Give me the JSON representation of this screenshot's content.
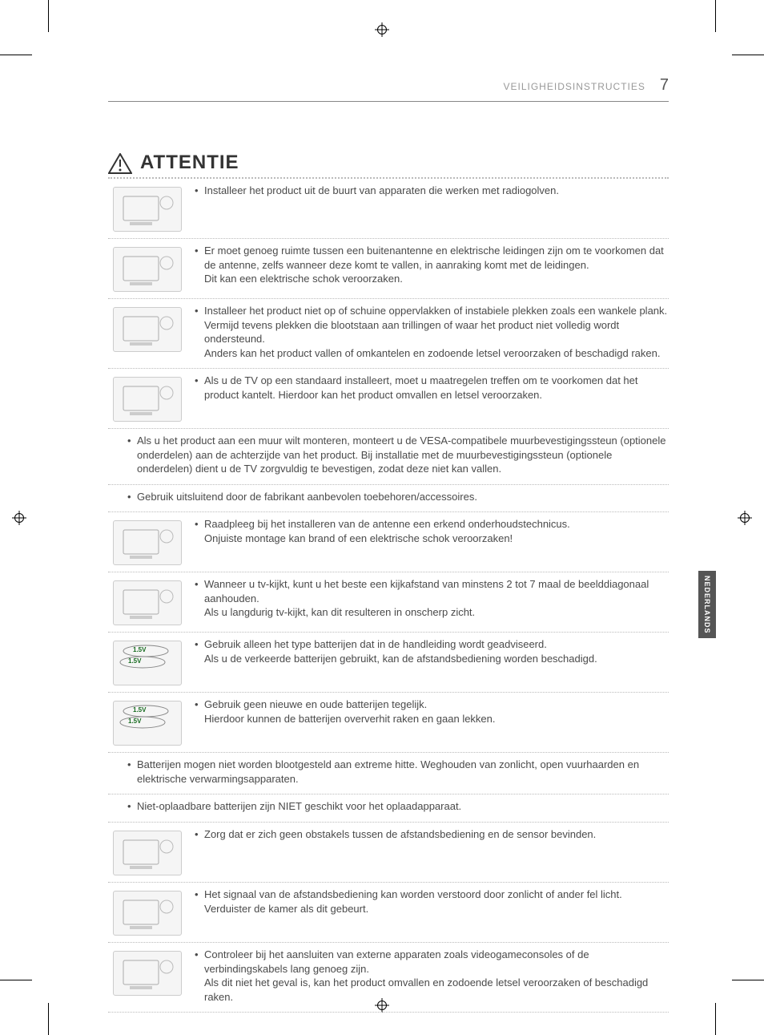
{
  "header": {
    "section": "VEILIGHEIDSINSTRUCTIES",
    "pagenum": "7"
  },
  "langtab": "NEDERLANDS",
  "attentie_title": "ATTENTIE",
  "rows": [
    {
      "kind": "img",
      "icon": "illustration-radio",
      "items": [
        {
          "main": "Installeer het product uit de buurt van apparaten die werken met radiogolven."
        }
      ]
    },
    {
      "kind": "img",
      "icon": "illustration-antenna",
      "items": [
        {
          "main": "Er moet genoeg ruimte tussen een buitenantenne en elektrische leidingen zijn om te voorkomen dat de antenne, zelfs wanneer deze komt te vallen, in aanraking komt met de leidingen.",
          "sub": "Dit kan een elektrische schok veroorzaken."
        }
      ]
    },
    {
      "kind": "img",
      "icon": "illustration-unstable",
      "items": [
        {
          "main": "Installeer het product niet op of schuine oppervlakken of instabiele plekken zoals een wankele plank. Vermijd tevens plekken die blootstaan aan trillingen of waar het product niet volledig wordt ondersteund.",
          "sub": "Anders kan het product vallen of omkantelen en zodoende letsel veroorzaken of beschadigd raken."
        }
      ]
    },
    {
      "kind": "img",
      "icon": "illustration-stand",
      "items": [
        {
          "main": "Als u de TV op een standaard installeert, moet u maatregelen treffen om te voorkomen dat het product kantelt. Hierdoor kan het product omvallen en letsel veroorzaken."
        }
      ]
    },
    {
      "kind": "full",
      "items": [
        {
          "main": "Als u het product aan een muur wilt monteren, monteert u de VESA-compatibele muurbevestigingssteun (optionele onderdelen) aan de achterzijde van het product. Bij installatie met de muurbevestigingssteun (optionele onderdelen) dient u de TV zorgvuldig te bevestigen, zodat deze niet kan vallen."
        },
        {
          "main": "Gebruik uitsluitend door de fabrikant aanbevolen toebehoren/accessoires."
        }
      ]
    },
    {
      "kind": "img",
      "icon": "illustration-technician",
      "items": [
        {
          "main": "Raadpleeg bij het installeren van de antenne een erkend onderhoudstechnicus.",
          "sub": "Onjuiste montage kan brand of een elektrische schok veroorzaken!"
        }
      ]
    },
    {
      "kind": "img",
      "icon": "illustration-distance",
      "items": [
        {
          "main": "Wanneer u tv-kijkt, kunt u het beste een kijkafstand van minstens 2 tot 7 maal de beelddiagonaal aanhouden.",
          "sub": "Als u langdurig tv-kijkt, kan dit resulteren in onscherp zicht."
        }
      ]
    },
    {
      "kind": "img",
      "icon": "battery-same",
      "battery": true,
      "b1": "1.5V",
      "b2": "1.5V",
      "items": [
        {
          "main": "Gebruik alleen het type batterijen dat in de handleiding wordt geadviseerd.",
          "sub": "Als u de verkeerde batterijen gebruikt, kan de afstandsbediening worden beschadigd."
        }
      ]
    },
    {
      "kind": "img",
      "icon": "battery-mixed",
      "battery": true,
      "b1": "1.5V",
      "b2": "1.5V",
      "items": [
        {
          "main": "Gebruik geen nieuwe en oude batterijen tegelijk.",
          "sub": "Hierdoor kunnen de batterijen oververhit raken en gaan lekken."
        }
      ]
    },
    {
      "kind": "full",
      "items": [
        {
          "main": "Batterijen mogen niet worden blootgesteld aan extreme hitte. Weghouden van zonlicht, open vuurhaarden en elektrische verwarmingsapparaten."
        },
        {
          "main": "Niet-oplaadbare batterijen zijn NIET geschikt voor het oplaadapparaat."
        }
      ]
    },
    {
      "kind": "img",
      "icon": "illustration-remote",
      "items": [
        {
          "main": "Zorg dat er zich geen obstakels tussen de afstandsbediening en de sensor bevinden."
        }
      ]
    },
    {
      "kind": "img",
      "icon": "illustration-sunlight",
      "items": [
        {
          "main": "Het signaal van de afstandsbediening kan worden verstoord door zonlicht of ander fel licht. Verduister de kamer als dit gebeurt."
        }
      ]
    },
    {
      "kind": "img",
      "icon": "illustration-console",
      "items": [
        {
          "main": "Controleer bij het aansluiten van externe apparaten zoals videogameconsoles of de verbindingskabels lang genoeg zijn.",
          "sub": "Als dit niet het geval is, kan het product omvallen en zodoende letsel veroorzaken of beschadigd raken."
        }
      ]
    }
  ]
}
